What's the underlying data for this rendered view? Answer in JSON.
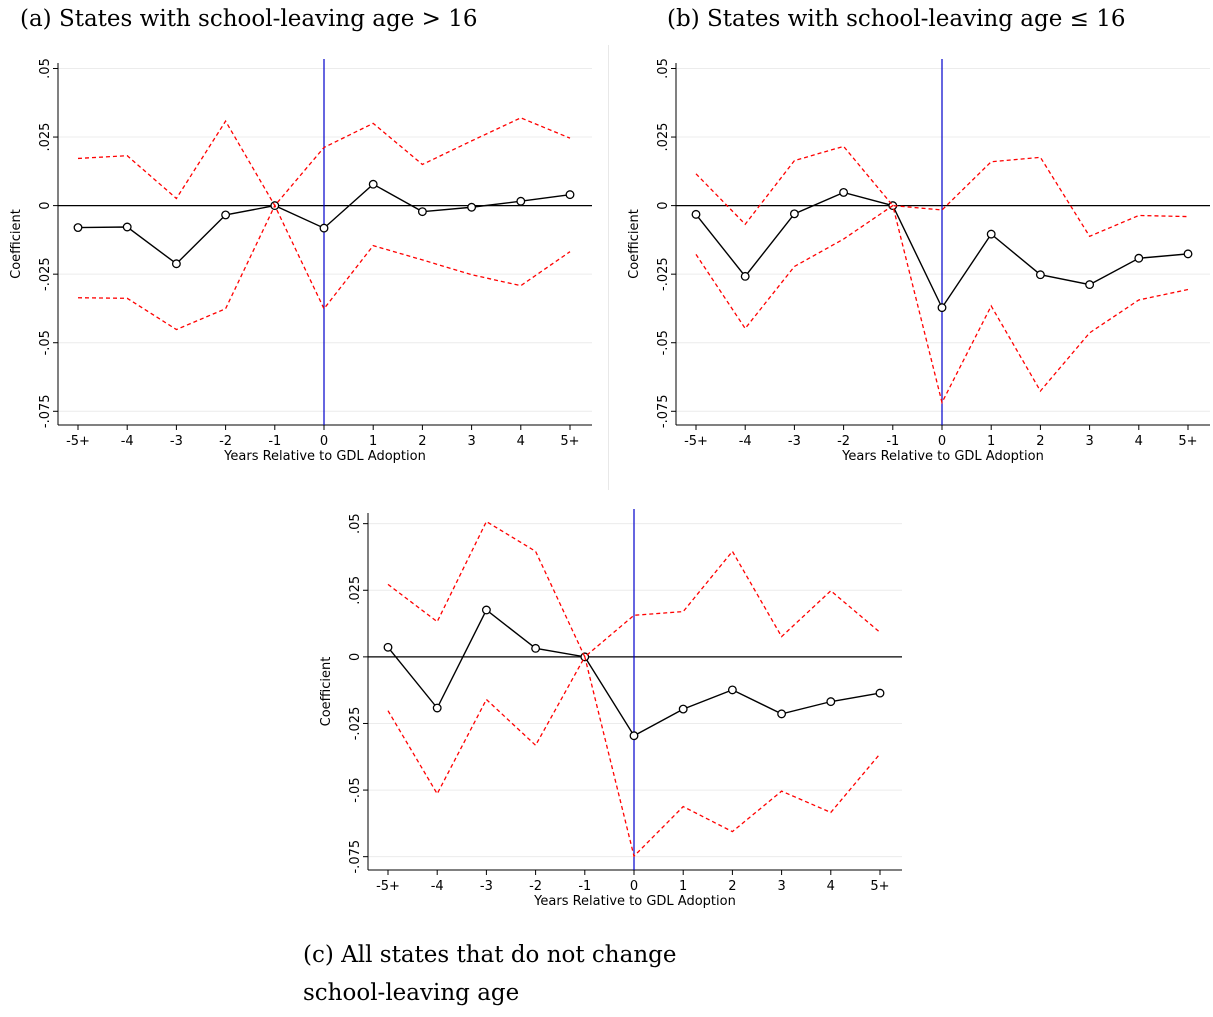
{
  "captions": {
    "a": "(a) States with school-leaving age > 16",
    "b": "(b) States with school-leaving age ≤ 16",
    "c": "(c) All states that do not change school-leaving age"
  },
  "chart_data": [
    {
      "id": "a",
      "type": "line",
      "xlabel": "Years Relative to GDL Adoption",
      "ylabel": "Coefficient",
      "categories": [
        "-5+",
        "-4",
        "-3",
        "-2",
        "-1",
        "0",
        "1",
        "2",
        "3",
        "4",
        "5+"
      ],
      "ylim": [
        -0.08,
        0.052
      ],
      "yticks": [
        0.05,
        0.025,
        0,
        -0.025,
        -0.05,
        -0.075
      ],
      "ytick_labels": [
        ".05",
        ".025",
        "0",
        "-.025",
        "-.05",
        "-.075"
      ],
      "event_line_at": "0",
      "series": [
        {
          "role": "coefficient",
          "values": [
            -0.008,
            -0.0078,
            -0.0212,
            -0.0034,
            0.0,
            -0.0082,
            0.0078,
            -0.0022,
            -0.0006,
            0.0016,
            0.004
          ]
        },
        {
          "role": "ci-upper",
          "values": [
            0.0172,
            0.0182,
            0.0026,
            0.0308,
            0.0,
            0.0212,
            0.03,
            0.015,
            0.0236,
            0.032,
            0.0246
          ]
        },
        {
          "role": "ci-lower",
          "values": [
            -0.0336,
            -0.0338,
            -0.0452,
            -0.0376,
            0.0,
            -0.0376,
            -0.0146,
            -0.0198,
            -0.0252,
            -0.0292,
            -0.0168
          ]
        }
      ],
      "grid": true
    },
    {
      "id": "b",
      "type": "line",
      "xlabel": "Years Relative to GDL Adoption",
      "ylabel": "Coefficient",
      "categories": [
        "-5+",
        "-4",
        "-3",
        "-2",
        "-1",
        "0",
        "1",
        "2",
        "3",
        "4",
        "5+"
      ],
      "ylim": [
        -0.08,
        0.052
      ],
      "yticks": [
        0.05,
        0.025,
        0,
        -0.025,
        -0.05,
        -0.075
      ],
      "ytick_labels": [
        ".05",
        ".025",
        "0",
        "-.025",
        "-.05",
        "-.075"
      ],
      "event_line_at": "0",
      "series": [
        {
          "role": "coefficient",
          "values": [
            -0.0032,
            -0.0258,
            -0.003,
            0.0048,
            0.0,
            -0.0372,
            -0.0104,
            -0.0252,
            -0.0288,
            -0.0192,
            -0.0176
          ]
        },
        {
          "role": "ci-upper",
          "values": [
            0.0116,
            -0.0068,
            0.0164,
            0.0216,
            0.0,
            -0.0016,
            0.016,
            0.0176,
            -0.0112,
            -0.0036,
            -0.004
          ]
        },
        {
          "role": "ci-lower",
          "values": [
            -0.0178,
            -0.0448,
            -0.0222,
            -0.0122,
            0.0,
            -0.0718,
            -0.0366,
            -0.0676,
            -0.0464,
            -0.0344,
            -0.0306
          ]
        }
      ],
      "grid": true
    },
    {
      "id": "c",
      "type": "line",
      "xlabel": "Years Relative to GDL Adoption",
      "ylabel": "Coefficient",
      "categories": [
        "-5+",
        "-4",
        "-3",
        "-2",
        "-1",
        "0",
        "1",
        "2",
        "3",
        "4",
        "5+"
      ],
      "ylim": [
        -0.08,
        0.054
      ],
      "yticks": [
        0.05,
        0.025,
        0,
        -0.025,
        -0.05,
        -0.075
      ],
      "ytick_labels": [
        ".05",
        ".025",
        "0",
        "-.025",
        "-.05",
        "-.075"
      ],
      "event_line_at": "0",
      "series": [
        {
          "role": "coefficient",
          "values": [
            0.0036,
            -0.0192,
            0.0176,
            0.0032,
            0.0,
            -0.0296,
            -0.0196,
            -0.0124,
            -0.0214,
            -0.0168,
            -0.0136
          ]
        },
        {
          "role": "ci-upper",
          "values": [
            0.0272,
            0.0132,
            0.0508,
            0.0396,
            0.0,
            0.0156,
            0.017,
            0.0396,
            0.0076,
            0.0248,
            0.0092
          ]
        },
        {
          "role": "ci-lower",
          "values": [
            -0.0202,
            -0.0514,
            -0.016,
            -0.0332,
            0.0,
            -0.0748,
            -0.0562,
            -0.0656,
            -0.0504,
            -0.0584,
            -0.0364
          ]
        }
      ],
      "grid": true
    }
  ],
  "colors": {
    "coefficient": "#000000",
    "ci": "#ff0000",
    "event_line": "#0000cc",
    "grid": "#ececec"
  }
}
